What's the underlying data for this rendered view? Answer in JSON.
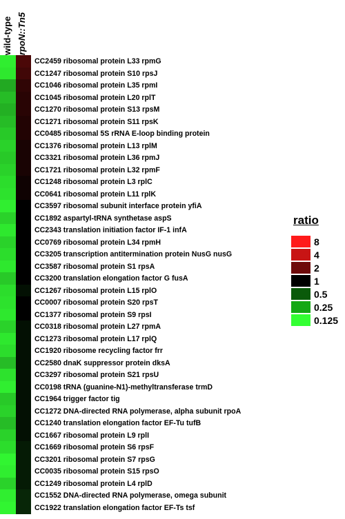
{
  "chart_data": {
    "type": "heatmap",
    "columns": [
      "wild-type",
      "rpoN::Tn5"
    ],
    "rows": [
      "CC2459 ribosomal protein L33 rpmG",
      "CC1247 ribosomal protein S10 rpsJ",
      "CC1046 ribosomal protein L35 rpmI",
      "CC1045 ribosomal protein L20 rplT",
      "CC1270 ribosomal protein S13 rpsM",
      "CC1271 ribosomal protein S11 rpsK",
      "CC0485 ribosomal 5S rRNA E-loop binding protein",
      "CC1376 ribosomal protein L13 rplM",
      "CC3321 ribosomal protein L36 rpmJ",
      "CC1721 ribosomal protein L32 rpmF",
      "CC1248 ribosomal protein L3 rplC",
      "CC0641 ribosomal protein L11 rplK",
      "CC3597 ribosomal subunit interface protein yfiA",
      "CC1892 aspartyl-tRNA synthetase aspS",
      "CC2343 translation initiation factor IF-1  infA",
      "CC0769 ribosomal protein L34 rpmH",
      "CC3205 transcription antitermination protein NusG  nusG",
      "CC3587 ribosomal protein S1 rpsA",
      "CC3200 translation elongation factor G fusA",
      "CC1267 ribosomal protein L15 rplO",
      "CC0007 ribosomal protein S20 rpsT",
      "CC1377 ribosomal protein S9 rpsI",
      "CC0318 ribosomal protein L27 rpmA",
      "CC1273 ribosomal protein L17 rplQ",
      "CC1920 ribosome recycling factor frr",
      "CC2580 dnaK suppressor protein dksA",
      "CC3297 ribosomal protein S21 rpsU",
      "CC0198 tRNA (guanine-N1)-methyltransferase trmD",
      "CC1964 trigger factor tig",
      "CC1272 DNA-directed RNA polymerase, alpha subunit rpoA",
      "CC1240 translation elongation factor EF-Tu tufB",
      "CC1667 ribosomal protein L9 rplI",
      "CC1669 ribosomal protein S6 rpsF",
      "CC3201 ribosomal protein S7 rpsG",
      "CC0035 ribosomal protein S15 rpsO",
      "CC1249 ribosomal protein L4 rplD",
      "CC1552 DNA-directed RNA polymerase, omega subunit",
      "CC1922 translation elongation factor EF-Ts tsf"
    ],
    "values": [
      [
        0.15,
        1.5
      ],
      [
        0.16,
        1.4
      ],
      [
        0.3,
        1.25
      ],
      [
        0.25,
        1.2
      ],
      [
        0.28,
        1.2
      ],
      [
        0.25,
        1.15
      ],
      [
        0.22,
        1.15
      ],
      [
        0.2,
        1.1
      ],
      [
        0.22,
        1.1
      ],
      [
        0.2,
        1.1
      ],
      [
        0.18,
        1.05
      ],
      [
        0.17,
        1.05
      ],
      [
        0.15,
        1.0
      ],
      [
        0.2,
        1.0
      ],
      [
        0.16,
        1.0
      ],
      [
        0.2,
        1.0
      ],
      [
        0.18,
        1.0
      ],
      [
        0.16,
        1.0
      ],
      [
        0.22,
        1.0
      ],
      [
        0.18,
        0.95
      ],
      [
        0.17,
        1.0
      ],
      [
        0.16,
        1.0
      ],
      [
        0.2,
        0.95
      ],
      [
        0.16,
        0.95
      ],
      [
        0.18,
        0.95
      ],
      [
        0.25,
        0.95
      ],
      [
        0.17,
        0.95
      ],
      [
        0.15,
        0.95
      ],
      [
        0.22,
        0.95
      ],
      [
        0.2,
        0.95
      ],
      [
        0.25,
        0.95
      ],
      [
        0.2,
        0.95
      ],
      [
        0.18,
        0.9
      ],
      [
        0.14,
        0.9
      ],
      [
        0.15,
        0.9
      ],
      [
        0.2,
        0.9
      ],
      [
        0.15,
        0.85
      ],
      [
        0.14,
        0.85
      ]
    ],
    "legend": {
      "title": "ratio",
      "entries": [
        {
          "label": "8",
          "color": "#ff1a1a"
        },
        {
          "label": "4",
          "color": "#c81414"
        },
        {
          "label": "2",
          "color": "#6e0a0a"
        },
        {
          "label": "1",
          "color": "#000000"
        },
        {
          "label": "0.5",
          "color": "#0a5a0a"
        },
        {
          "label": "0.25",
          "color": "#14a814"
        },
        {
          "label": "0.125",
          "color": "#33ff33"
        }
      ],
      "placement": "right"
    },
    "color_scale": "log2 ratio: green (down) - black (1) - red (up)"
  }
}
